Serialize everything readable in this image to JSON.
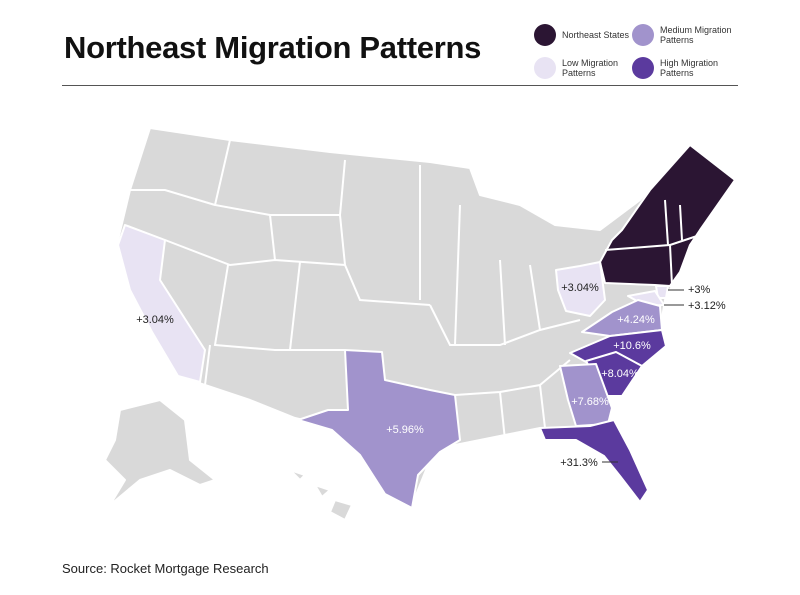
{
  "header": {
    "title": "Northeast Migration Patterns"
  },
  "legend": {
    "items": [
      {
        "label": "Northeast States",
        "color": "#2b1533"
      },
      {
        "label": "Medium Migration Patterns",
        "color": "#a193cc"
      },
      {
        "label": "Low Migration Patterns",
        "color": "#e8e3f3"
      },
      {
        "label": "High Migration Patterns",
        "color": "#5b3a9e"
      }
    ]
  },
  "map": {
    "base_color": "#d9d9d9",
    "regions": [
      {
        "label": "+3.04%",
        "color": "#e8e3f3"
      },
      {
        "label": "+5.96%",
        "color": "#a193cc"
      },
      {
        "label": "+3.04%",
        "color": "#e8e3f3"
      },
      {
        "label": "+3%",
        "color": "#e8e3f3"
      },
      {
        "label": "+3.12%",
        "color": "#e8e3f3"
      },
      {
        "label": "+4.24%",
        "color": "#a193cc"
      },
      {
        "label": "+10.6%",
        "color": "#5b3a9e"
      },
      {
        "label": "+8.04%",
        "color": "#5b3a9e"
      },
      {
        "label": "+7.68%",
        "color": "#a193cc"
      },
      {
        "label": "+31.3%",
        "color": "#5b3a9e"
      }
    ]
  },
  "footer": {
    "source": "Source: Rocket Mortgage Research"
  }
}
